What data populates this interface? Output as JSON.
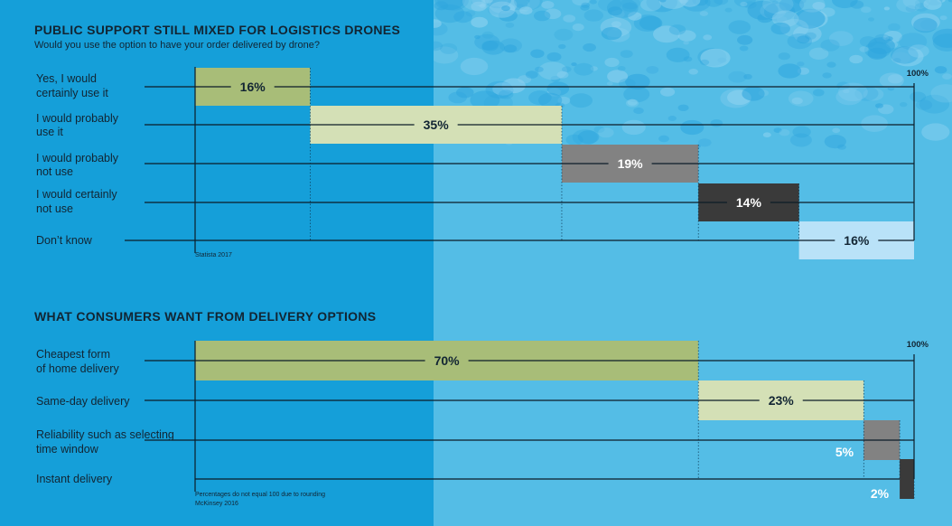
{
  "colors": {
    "bg_left": "#159fd9",
    "bg_right": "#54bde6",
    "text": "#122533",
    "line": "#0c1c28",
    "olive": "#a8bd78",
    "cream": "#d4e0b6",
    "gray": "#828282",
    "dark": "#3a3a3a",
    "light": "#b9e2f8"
  },
  "chart_data": [
    {
      "type": "bar",
      "title": "PUBLIC SUPPORT STILL MIXED FOR LOGISTICS DRONES",
      "subtitle": "Would you use the option to have your order delivered by drone?",
      "categories": [
        [
          "Yes, I would",
          "certainly use it"
        ],
        [
          "I would probably",
          "use it"
        ],
        [
          "I would probably",
          "not use"
        ],
        [
          "I would certainly",
          "not use"
        ],
        [
          "Don’t know"
        ]
      ],
      "values": [
        16,
        35,
        19,
        14,
        16
      ],
      "value_labels": [
        "16%",
        "35%",
        "19%",
        "14%",
        "16%"
      ],
      "bar_colors": [
        "olive",
        "cream",
        "gray",
        "dark",
        "light"
      ],
      "label_colors": [
        "text",
        "text",
        "white",
        "white",
        "text"
      ],
      "max_label": "100%",
      "source": "Statista 2017",
      "xlim": [
        0,
        100
      ]
    },
    {
      "type": "bar",
      "title": "WHAT CONSUMERS WANT FROM DELIVERY OPTIONS",
      "subtitle": "",
      "categories": [
        [
          "Cheapest form",
          "of home delivery"
        ],
        [
          "Same-day delivery"
        ],
        [
          "Reliability such as selecting",
          "time window"
        ],
        [
          "Instant delivery"
        ]
      ],
      "values": [
        70,
        23,
        5,
        2
      ],
      "value_labels": [
        "70%",
        "23%",
        "5%",
        "2%"
      ],
      "bar_colors": [
        "olive",
        "cream",
        "gray",
        "dark"
      ],
      "label_colors": [
        "text",
        "text",
        "white",
        "white"
      ],
      "max_label": "100%",
      "notes": [
        "Percentages do not equal 100 due to rounding",
        "McKinsey 2016"
      ],
      "xlim": [
        0,
        100
      ]
    }
  ]
}
